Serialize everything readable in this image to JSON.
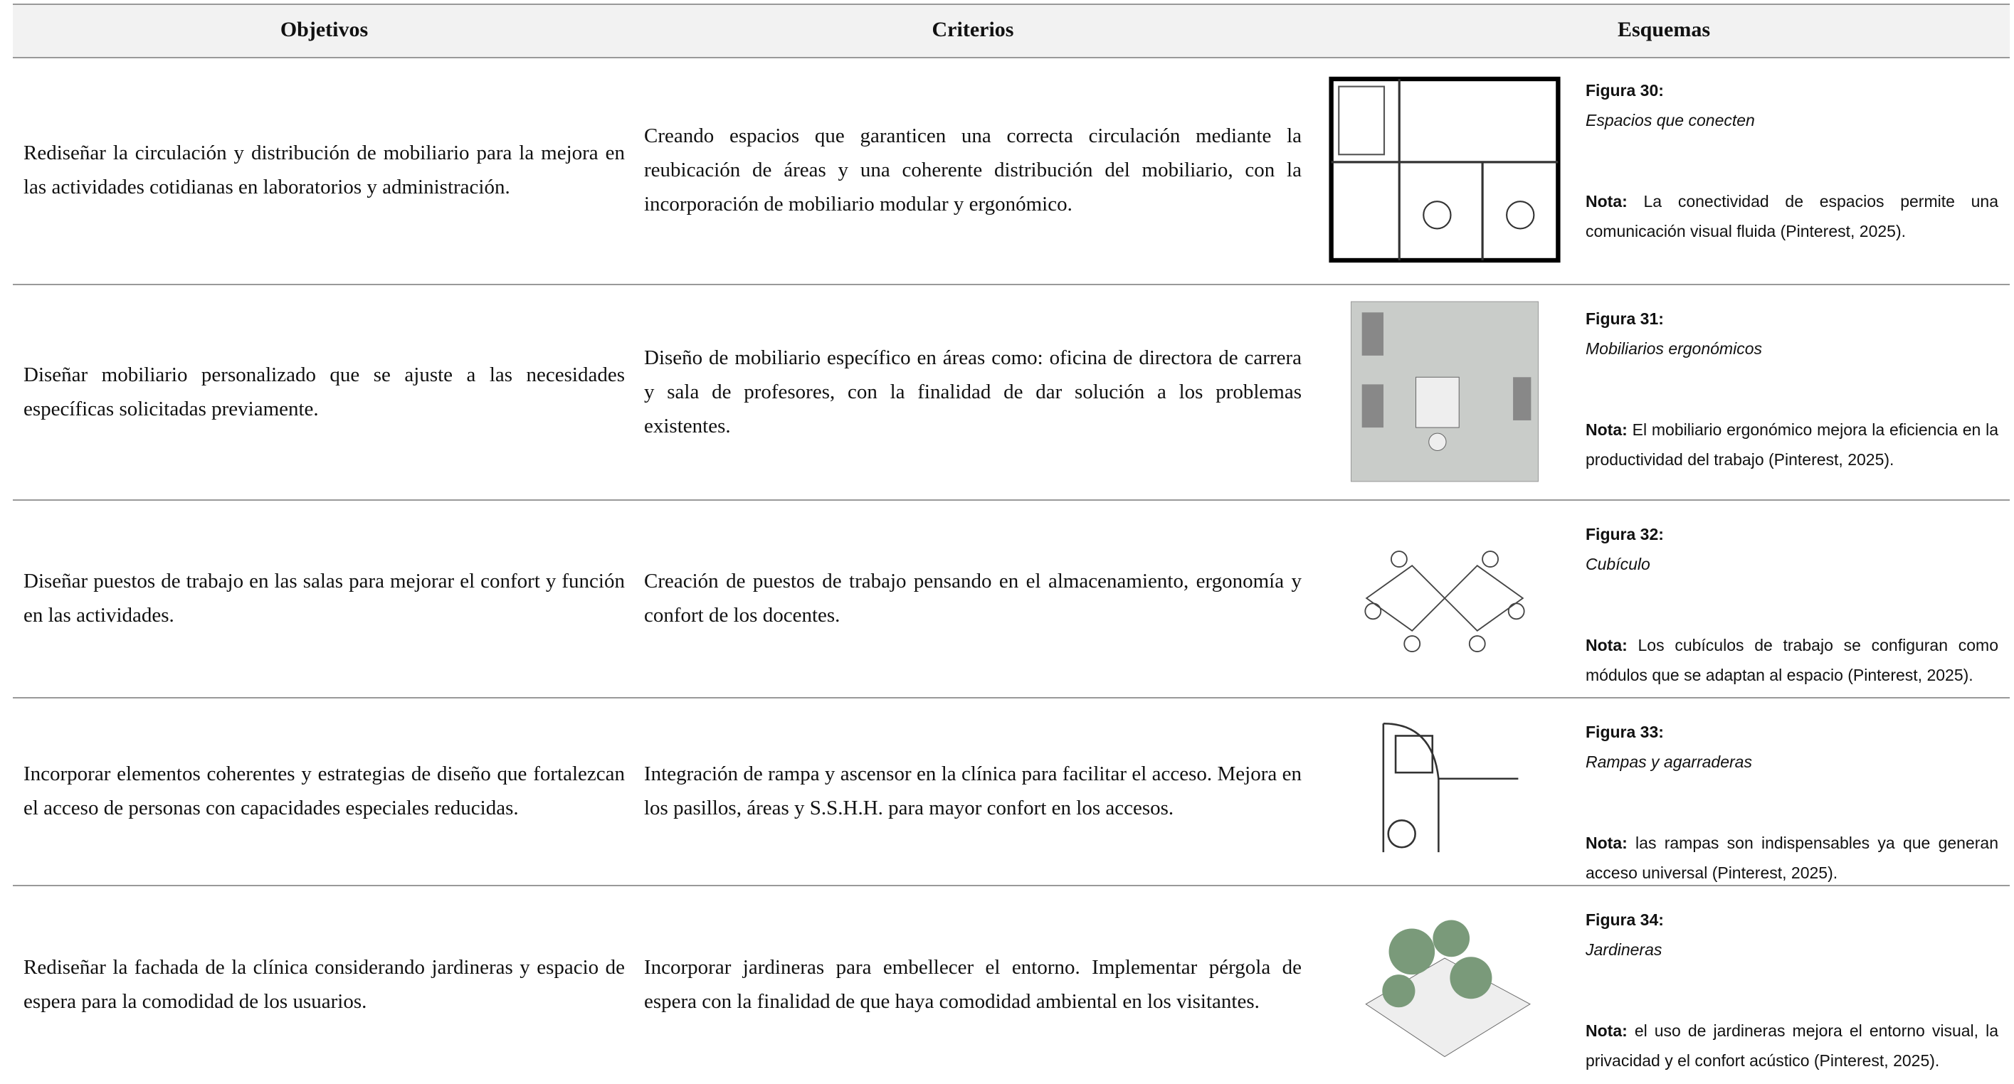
{
  "table": {
    "header": [
      "Objetivos",
      "Criterios",
      "Esquemas"
    ],
    "rows": [
      {
        "objective": "Rediseñar la circulación y distribución de mobiliario para la mejora en las actividades cotidianas en laboratorios y administración.",
        "criterion": "Creando espacios que garanticen una correcta circulación mediante la reubicación de áreas y una coherente distribución del mobiliario, con la incorporación de mobiliario modular y ergonómico.",
        "figure_label": "Figura 30:",
        "figure_title": "Espacios que conecten",
        "note_label": "Nota:",
        "note": "La conectividad de espacios permite una comunicación visual fluida (Pinterest, 2025)."
      },
      {
        "objective": "Diseñar mobiliario personalizado que se ajuste a las necesidades específicas solicitadas previamente.",
        "criterion": "Diseño de mobiliario específico en áreas como: oficina de directora de carrera y sala de profesores, con la finalidad de dar solución a los problemas existentes.",
        "figure_label": "Figura 31:",
        "figure_title": "Mobiliarios ergonómicos",
        "note_label": "Nota:",
        "note": "El mobiliario ergonómico mejora la eficiencia en la productividad del trabajo (Pinterest, 2025)."
      },
      {
        "objective": "Diseñar puestos de trabajo en las salas para mejorar el confort y función en las actividades.",
        "criterion": "Creación de puestos de trabajo pensando en el almacenamiento, ergonomía y confort de los docentes.",
        "figure_label": "Figura 32:",
        "figure_title": "Cubículo",
        "note_label": "Nota:",
        "note": "Los cubículos de trabajo se configuran como módulos que se adaptan al espacio (Pinterest, 2025)."
      },
      {
        "objective": "Incorporar elementos coherentes y estrategias de diseño que fortalezcan el acceso de personas con capacidades especiales reducidas.",
        "criterion": "Integración de rampa y ascensor en la clínica para facilitar el acceso. Mejora en los pasillos, áreas y S.S.H.H. para mayor confort en los accesos.",
        "figure_label": "Figura 33:",
        "figure_title": "Rampas y agarraderas",
        "note_label": "Nota:",
        "note": "las rampas son indispensables ya que generan acceso universal (Pinterest, 2025)."
      },
      {
        "objective": "Rediseñar la fachada de la clínica considerando jardineras y espacio de espera para la comodidad de los usuarios.",
        "criterion": "Incorporar jardineras para embellecer el entorno. Implementar pérgola de espera con la finalidad de que haya comodidad ambiental en los visitantes.",
        "figure_label": "Figura 34:",
        "figure_title": "Jardineras",
        "note_label": "Nota:",
        "note": "el uso de jardineras mejora el entorno visual, la privacidad y el confort acústico (Pinterest, 2025)."
      }
    ]
  }
}
